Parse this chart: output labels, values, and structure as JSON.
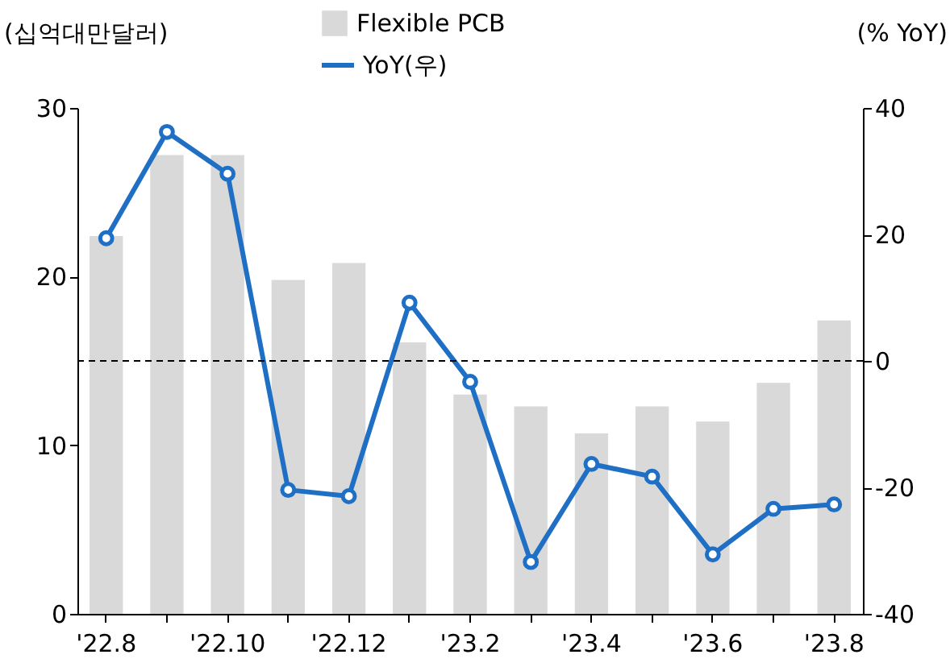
{
  "chart_data": {
    "type": "bar",
    "ylabel": "(십억대만달러)",
    "y2label": "(% YoY)",
    "categories": [
      "'22.8",
      null,
      "'22.10",
      null,
      "'22.12",
      null,
      "'23.2",
      null,
      "'23.4",
      null,
      "'23.6",
      null,
      "'23.8"
    ],
    "series": [
      {
        "name": "Flexible PCB",
        "color": "#d9d9d9",
        "values": [
          22.4,
          27.2,
          27.2,
          19.8,
          20.8,
          16.1,
          13.0,
          12.3,
          10.7,
          12.3,
          11.4,
          13.7,
          17.4
        ]
      },
      {
        "name": "YoY(우)",
        "type": "line",
        "axis": "y2",
        "color": "#1f6fc5",
        "marker": "circle",
        "values": [
          19.4,
          36.2,
          29.6,
          -20.4,
          -21.4,
          9.2,
          -3.3,
          -31.8,
          -16.3,
          -18.3,
          -30.6,
          -23.4,
          -22.7
        ]
      }
    ],
    "ylim": [
      0,
      30
    ],
    "yticks": [
      0,
      10,
      20,
      30
    ],
    "y2lim": [
      -40,
      40
    ],
    "y2ticks": [
      -40,
      -20,
      0,
      20,
      40
    ],
    "ref_lines": [
      {
        "axis": "y2",
        "value": 0,
        "color": "#000000",
        "line_style": "dashed"
      }
    ],
    "legend": "top"
  }
}
